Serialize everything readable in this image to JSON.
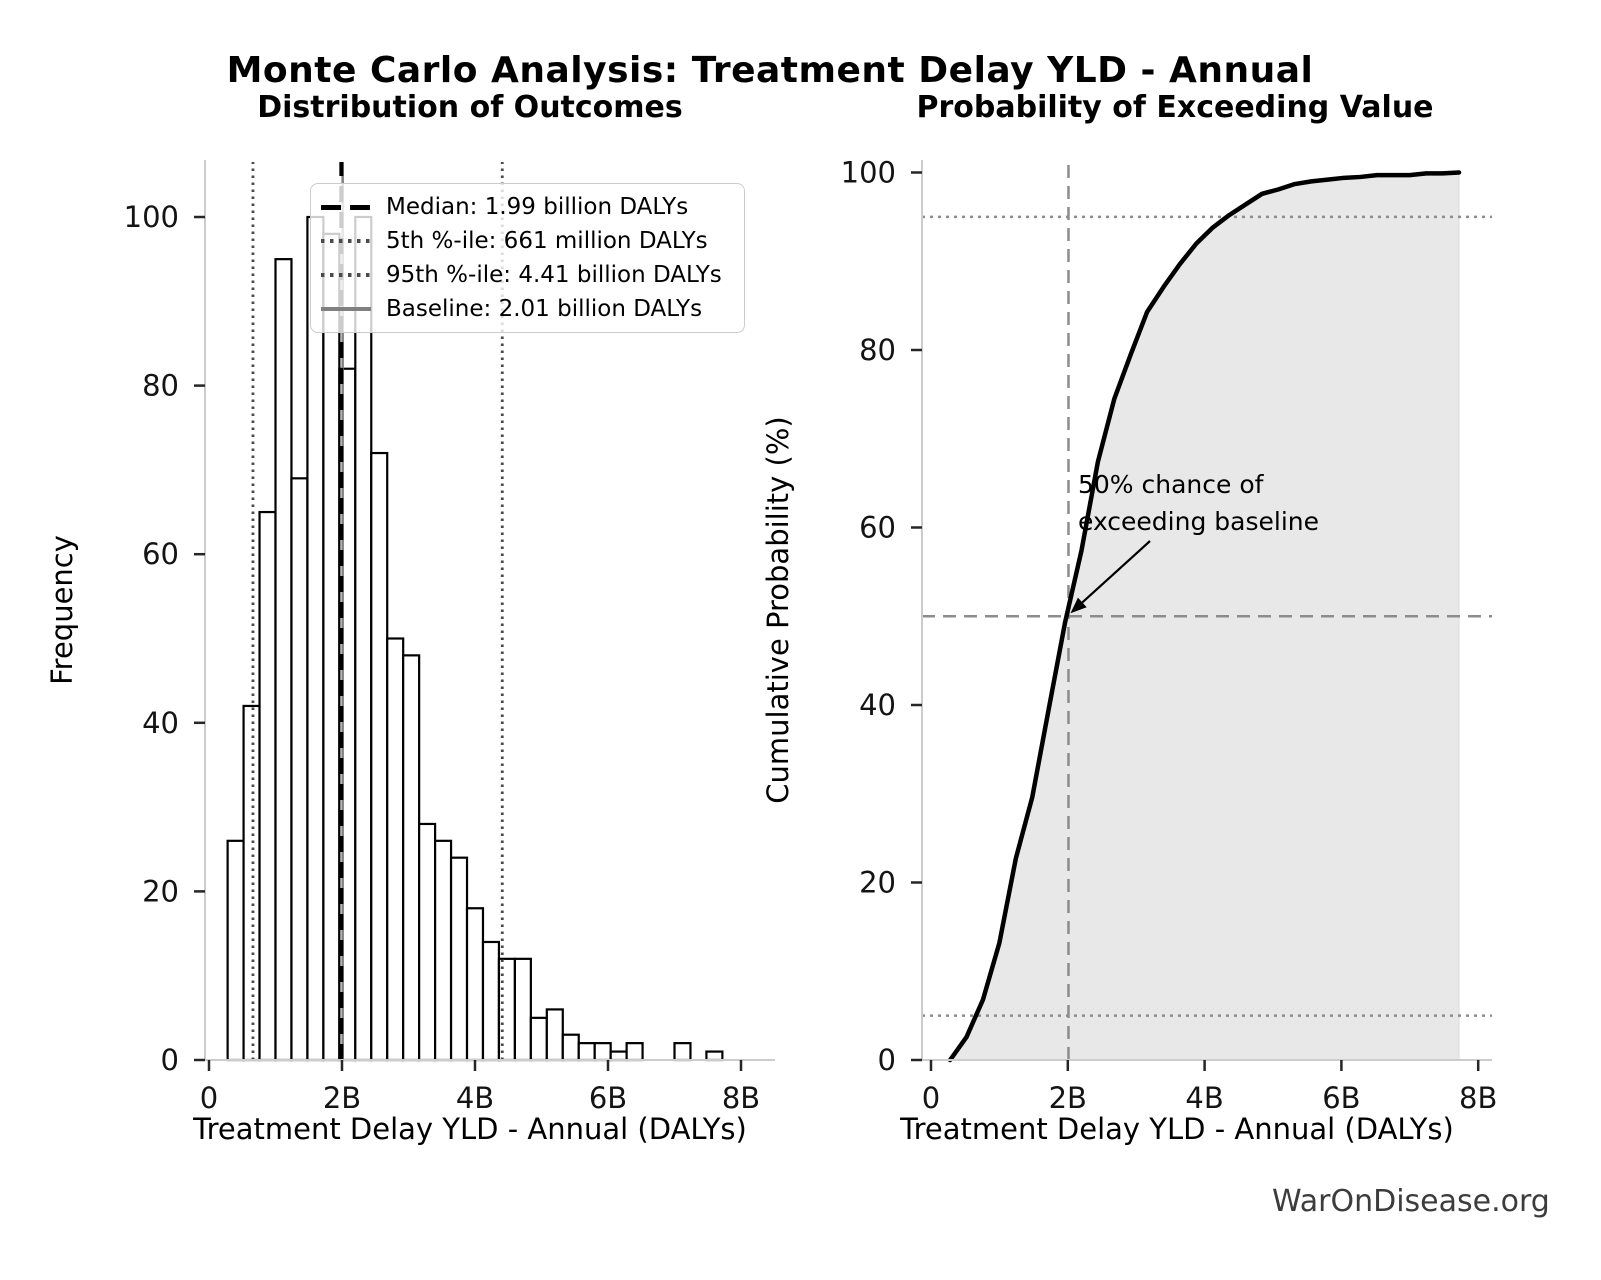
{
  "figure_title": "Monte Carlo Analysis: Treatment Delay YLD - Annual",
  "watermark": "WarOnDisease.org",
  "left_plot": {
    "title": "Distribution of Outcomes",
    "xlabel": "Treatment Delay YLD - Annual (DALYs)",
    "ylabel": "Frequency",
    "legend": {
      "items": [
        {
          "label": "Median: 1.99 billion DALYs",
          "style": "dashed-black"
        },
        {
          "label": "5th %-ile: 661 million DALYs",
          "style": "dotted-gray"
        },
        {
          "label": "95th %-ile: 4.41 billion DALYs",
          "style": "dotted-gray"
        },
        {
          "label": "Baseline: 2.01 billion DALYs",
          "style": "solid-gray"
        }
      ]
    }
  },
  "right_plot": {
    "title": "Probability of Exceeding Value",
    "xlabel": "Treatment Delay YLD - Annual (DALYs)",
    "ylabel": "Cumulative Probability (%)",
    "annotation": "50% chance of\nexceeding baseline"
  },
  "chart_data": [
    {
      "type": "bar",
      "subtype": "histogram",
      "title": "Distribution of Outcomes",
      "xlabel": "Treatment Delay YLD - Annual (DALYs)",
      "ylabel": "Frequency",
      "x_unit_scale": "billions (B) of DALYs",
      "bin_start": 0.28,
      "bin_width": 0.24,
      "frequencies": [
        26,
        42,
        65,
        95,
        69,
        100,
        98,
        82,
        100,
        72,
        50,
        48,
        28,
        26,
        24,
        18,
        14,
        12,
        12,
        5,
        6,
        3,
        2,
        2,
        1,
        2,
        0,
        0,
        2,
        0,
        1
      ],
      "x_ticks": [
        {
          "value": 0,
          "label": "0"
        },
        {
          "value": 2,
          "label": "2B"
        },
        {
          "value": 4,
          "label": "4B"
        },
        {
          "value": 6,
          "label": "6B"
        },
        {
          "value": 8,
          "label": "8B"
        }
      ],
      "y_ticks": [
        {
          "value": 0,
          "label": "0"
        },
        {
          "value": 20,
          "label": "20"
        },
        {
          "value": 40,
          "label": "40"
        },
        {
          "value": 60,
          "label": "60"
        },
        {
          "value": 80,
          "label": "80"
        },
        {
          "value": 100,
          "label": "100"
        }
      ],
      "xlim": [
        -0.06,
        8.55
      ],
      "ylim": [
        0,
        106.8
      ],
      "grid": false,
      "markers": {
        "median_billion": 1.99,
        "p5_billion": 0.661,
        "p95_billion": 4.41,
        "baseline_billion": 2.01
      }
    },
    {
      "type": "line",
      "subtype": "empirical-cdf",
      "title": "Probability of Exceeding Value",
      "xlabel": "Treatment Delay YLD - Annual (DALYs)",
      "ylabel": "Cumulative Probability (%)",
      "x_unit_scale": "billions (B) of DALYs",
      "x": [
        0.28,
        0.52,
        0.76,
        1.0,
        1.24,
        1.48,
        1.72,
        1.96,
        2.2,
        2.44,
        2.68,
        2.92,
        3.16,
        3.4,
        3.64,
        3.88,
        4.12,
        4.36,
        4.6,
        4.84,
        5.08,
        5.32,
        5.56,
        5.8,
        6.04,
        6.28,
        6.52,
        6.76,
        7.0,
        7.24,
        7.48,
        7.72
      ],
      "y": [
        0,
        2.6,
        6.8,
        13.2,
        22.7,
        29.6,
        39.5,
        49.3,
        57.4,
        67.4,
        74.5,
        79.5,
        84.3,
        87.1,
        89.7,
        92.0,
        93.8,
        95.2,
        96.4,
        97.6,
        98.1,
        98.7,
        99.0,
        99.2,
        99.4,
        99.5,
        99.7,
        99.7,
        99.7,
        99.9,
        99.9,
        100
      ],
      "x_ticks": [
        {
          "value": 0,
          "label": "0"
        },
        {
          "value": 2,
          "label": "2B"
        },
        {
          "value": 4,
          "label": "4B"
        },
        {
          "value": 6,
          "label": "6B"
        },
        {
          "value": 8,
          "label": "8B"
        }
      ],
      "y_ticks": [
        {
          "value": 0,
          "label": "0"
        },
        {
          "value": 20,
          "label": "20"
        },
        {
          "value": 40,
          "label": "40"
        },
        {
          "value": 60,
          "label": "60"
        },
        {
          "value": 80,
          "label": "80"
        },
        {
          "value": 100,
          "label": "100"
        }
      ],
      "xlim": [
        -0.1,
        8.2
      ],
      "ylim": [
        0,
        101
      ],
      "grid": false,
      "shaded_area": true,
      "guides": {
        "vline_baseline": 2.01,
        "hline_dashed": 50,
        "hlines_dotted": [
          5,
          95
        ]
      },
      "annotation": {
        "text": "50% chance of\nexceeding baseline",
        "points_to": [
          2.01,
          50
        ]
      }
    }
  ],
  "colors": {
    "background": "#ffffff",
    "bar_fill": "#ffffff",
    "bar_edge": "#000000",
    "median_line": "#000000",
    "percentile_dotted": "#4a4a4a",
    "baseline_line": "#808080",
    "cdf_curve": "#000000",
    "cdf_shade": "#e8e8e8",
    "guide_gray": "#8c8c8c",
    "spine": "#cccccc",
    "tick": "#262626",
    "text": "#000000",
    "watermark_text": "#3c3c3c"
  }
}
